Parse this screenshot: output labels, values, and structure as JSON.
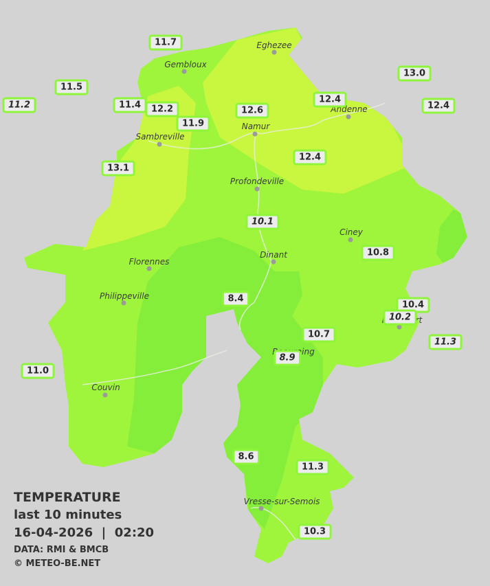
{
  "cities": [
    "Eghezee",
    "Gembloux",
    "Andenne",
    "Namur",
    "Sambreville",
    "Profondeville",
    "Ciney",
    "Florennes",
    "Dinant",
    "Philippeville",
    "Rochefort",
    "Beauraing",
    "Couvin",
    "Vresse-sur-Semois"
  ],
  "readings": [
    "11.7",
    "11.5",
    "11.2",
    "11.4",
    "12.2",
    "11.9",
    "12.6",
    "12.4",
    "13.0",
    "12.4",
    "13.1",
    "12.4",
    "10.1",
    "10.8",
    "8.4",
    "10.4",
    "10.2",
    "11.3",
    "10.7",
    "8.9",
    "11.0",
    "8.6",
    "11.3",
    "10.3"
  ],
  "legend": {
    "title": "TEMPERATURE",
    "subtitle": "last 10 minutes",
    "datetime": "16-04-2026  |  02:20",
    "source": "DATA: RMI & BMCB",
    "credit": "© METEO-BE.NET"
  }
}
